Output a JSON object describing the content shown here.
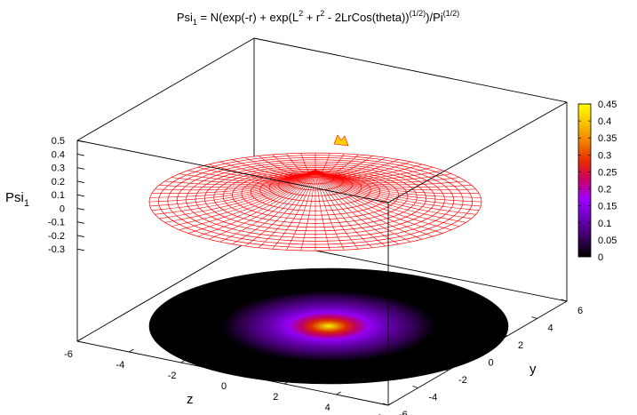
{
  "chart_data": {
    "type": "surface",
    "title": {
      "pre": "Psi",
      "sub": "1",
      "mid": " = N(exp(-r) + exp(L",
      "sup1": "2",
      "mid2": " + r",
      "sup2": "2",
      "mid3": " - 2LrCos(theta))",
      "sup3": "(1/2)",
      "mid4": ")/Pi",
      "sup4": "(1/2)"
    },
    "zlabel": {
      "base": "Psi",
      "sub": "1"
    },
    "xlabel": "z",
    "ylabel": "y",
    "x_ticks": [
      "-6",
      "-4",
      "-2",
      "0",
      "2",
      "4",
      "6"
    ],
    "y_ticks": [
      "-6",
      "-4",
      "-2",
      "0",
      "2",
      "4",
      "6"
    ],
    "z_ticks": [
      "-0.3",
      "-0.2",
      "-0.1",
      "0",
      "0.1",
      "0.2",
      "0.3",
      "0.4",
      "0.5"
    ],
    "colorbar_ticks": [
      "0",
      "0.05",
      "0.1",
      "0.15",
      "0.2",
      "0.25",
      "0.3",
      "0.35",
      "0.4",
      "0.45"
    ],
    "zlim": [
      -0.3,
      0.5
    ],
    "cblim": [
      0,
      0.45
    ],
    "domain_radius": 6,
    "surface": {
      "base_level": 0.14,
      "peak_value": 0.47,
      "mesh_color": "#ff0000"
    },
    "palette": [
      "#000000",
      "#3a0060",
      "#6b00b8",
      "#9b00ff",
      "#c8006a",
      "#e52a00",
      "#f27d00",
      "#f7c300",
      "#ffff00"
    ]
  }
}
